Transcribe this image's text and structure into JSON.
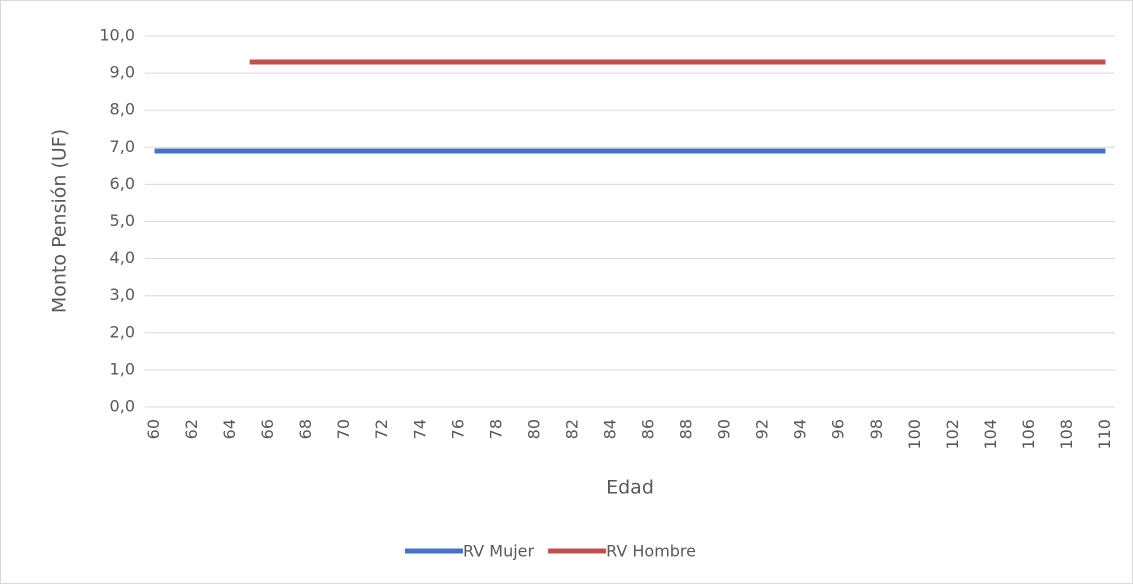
{
  "chart_data": {
    "type": "line",
    "x_label": "Edad",
    "y_label": "Monto Pensión (UF)",
    "categories": [
      "60",
      null,
      "62",
      null,
      "64",
      null,
      "66",
      null,
      "68",
      null,
      "70",
      null,
      "72",
      null,
      "74",
      null,
      "76",
      null,
      "78",
      null,
      "80",
      null,
      "82",
      null,
      "84",
      null,
      "86",
      null,
      "88",
      null,
      "90",
      null,
      "92",
      null,
      "94",
      null,
      "96",
      null,
      "98",
      null,
      "100",
      null,
      "102",
      null,
      "104",
      null,
      "106",
      null,
      "108",
      null,
      "110"
    ],
    "series": [
      {
        "name": "RV Mujer",
        "color": "#4472c4",
        "values": [
          6.9,
          6.9,
          6.9,
          6.9,
          6.9,
          6.9,
          6.9,
          6.9,
          6.9,
          6.9,
          6.9,
          6.9,
          6.9,
          6.9,
          6.9,
          6.9,
          6.9,
          6.9,
          6.9,
          6.9,
          6.9,
          6.9,
          6.9,
          6.9,
          6.9,
          6.9,
          6.9,
          6.9,
          6.9,
          6.9,
          6.9,
          6.9,
          6.9,
          6.9,
          6.9,
          6.9,
          6.9,
          6.9,
          6.9,
          6.9,
          6.9,
          6.9,
          6.9,
          6.9,
          6.9,
          6.9,
          6.9,
          6.9,
          6.9,
          6.9,
          6.9
        ]
      },
      {
        "name": "RV Hombre",
        "color": "#c0504d",
        "values": [
          null,
          null,
          null,
          null,
          null,
          9.3,
          9.3,
          9.3,
          9.3,
          9.3,
          9.3,
          9.3,
          9.3,
          9.3,
          9.3,
          9.3,
          9.3,
          9.3,
          9.3,
          9.3,
          9.3,
          9.3,
          9.3,
          9.3,
          9.3,
          9.3,
          9.3,
          9.3,
          9.3,
          9.3,
          9.3,
          9.3,
          9.3,
          9.3,
          9.3,
          9.3,
          9.3,
          9.3,
          9.3,
          9.3,
          9.3,
          9.3,
          9.3,
          9.3,
          9.3,
          9.3,
          9.3,
          9.3,
          9.3,
          9.3,
          9.3
        ]
      }
    ],
    "ylim": [
      0,
      10
    ],
    "yticks": [
      {
        "value": 0,
        "label": "0,0"
      },
      {
        "value": 1,
        "label": "1,0"
      },
      {
        "value": 2,
        "label": "2,0"
      },
      {
        "value": 3,
        "label": "3,0"
      },
      {
        "value": 4,
        "label": "4,0"
      },
      {
        "value": 5,
        "label": "5,0"
      },
      {
        "value": 6,
        "label": "6,0"
      },
      {
        "value": 7,
        "label": "7,0"
      },
      {
        "value": 8,
        "label": "8,0"
      },
      {
        "value": 9,
        "label": "9,0"
      },
      {
        "value": 10,
        "label": "10,0"
      }
    ],
    "grid": true,
    "legend": "bottom"
  }
}
